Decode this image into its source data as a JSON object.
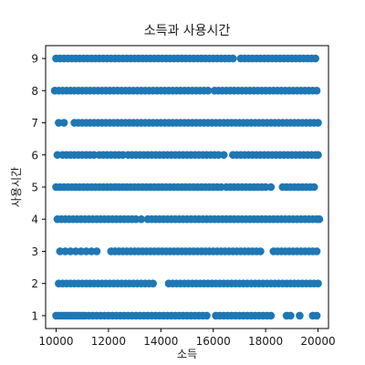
{
  "chart_data": {
    "type": "scatter",
    "title": "소득과 사용시간",
    "xlabel": "소득",
    "ylabel": "사용시간",
    "xlim": [
      9600,
      20400
    ],
    "ylim": [
      0.6,
      9.4
    ],
    "x_ticks": [
      10000,
      12000,
      14000,
      16000,
      18000,
      20000
    ],
    "y_ticks": [
      1,
      2,
      3,
      4,
      5,
      6,
      7,
      8,
      9
    ],
    "grid": false,
    "legend": "none",
    "marker_color": "#1f77b4",
    "series": [
      {
        "points": [
          {
            "y": 1,
            "x": [
              10000,
              10100,
              10200,
              10300,
              10400,
              10500,
              10600,
              10700,
              10800,
              10900,
              11000,
              11100,
              11250,
              11400,
              11550,
              11700,
              11850,
              12000,
              12150,
              12300,
              12450,
              12600,
              12750,
              12900,
              13050,
              13200,
              13350,
              13500,
              13650,
              13800,
              13950,
              14100,
              14250,
              14400,
              14550,
              14700,
              14850,
              15000,
              15150,
              15300,
              15450,
              15600,
              15750,
              16100,
              16250,
              16400,
              16550,
              16700,
              16850,
              17000,
              17150,
              17300,
              17450,
              17600,
              17750,
              17900,
              18050,
              18200,
              18800,
              18950,
              19300,
              19800,
              19950
            ]
          },
          {
            "y": 2,
            "x": [
              10100,
              10250,
              10400,
              10550,
              10700,
              10850,
              11000,
              11150,
              11300,
              11450,
              11600,
              11750,
              11900,
              12050,
              12200,
              12350,
              12500,
              12650,
              12800,
              12950,
              13100,
              13250,
              13400,
              13550,
              13700,
              14300,
              14450,
              14600,
              14750,
              14900,
              15050,
              15200,
              15350,
              15500,
              15650,
              15800,
              15950,
              16100,
              16250,
              16400,
              16550,
              16700,
              16850,
              17000,
              17150,
              17300,
              17450,
              17600,
              17750,
              17900,
              18050,
              18200,
              18350,
              18500,
              18650,
              18800,
              18950,
              19100,
              19250,
              19400,
              19550,
              19700,
              19850,
              20000
            ]
          },
          {
            "y": 3,
            "x": [
              10150,
              10350,
              10550,
              10750,
              10950,
              11150,
              11350,
              11550,
              12100,
              12250,
              12400,
              12550,
              12700,
              12850,
              13000,
              13150,
              13300,
              13450,
              13600,
              13750,
              13900,
              14050,
              14200,
              14350,
              14500,
              14650,
              14800,
              14950,
              15100,
              15250,
              15400,
              15550,
              15700,
              15850,
              16000,
              16150,
              16300,
              16450,
              16600,
              16750,
              16900,
              17050,
              17200,
              17350,
              17500,
              17650,
              17800,
              18300,
              18450,
              18600,
              18750,
              18900,
              19050,
              19200,
              19350,
              19500,
              19650,
              19800,
              19950
            ]
          },
          {
            "y": 4,
            "x": [
              10050,
              10200,
              10350,
              10500,
              10650,
              10800,
              10950,
              11100,
              11250,
              11400,
              11550,
              11700,
              11850,
              12000,
              12150,
              12300,
              12450,
              12600,
              12750,
              12900,
              13050,
              13250,
              13500,
              13650,
              13800,
              13950,
              14100,
              14250,
              14400,
              14550,
              14700,
              14850,
              15000,
              15150,
              15300,
              15450,
              15600,
              15750,
              15900,
              16050,
              16200,
              16350,
              16500,
              16650,
              16800,
              16950,
              17100,
              17250,
              17400,
              17550,
              17700,
              17850,
              18000,
              18150,
              18300,
              18450,
              18600,
              18750,
              18900,
              19050,
              19200,
              19350,
              19500,
              19650,
              19800,
              19950,
              20050
            ]
          },
          {
            "y": 5,
            "x": [
              10000,
              10150,
              10300,
              10450,
              10600,
              10750,
              10900,
              11050,
              11200,
              11350,
              11500,
              11650,
              11800,
              11950,
              12100,
              12250,
              12400,
              12550,
              12700,
              12850,
              13000,
              13150,
              13300,
              13450,
              13600,
              13750,
              13900,
              14050,
              14200,
              14350,
              14500,
              14650,
              14800,
              14950,
              15100,
              15250,
              15400,
              15550,
              15700,
              15850,
              16000,
              16150,
              16300,
              16500,
              16650,
              16800,
              16950,
              17100,
              17250,
              17400,
              17550,
              17700,
              17850,
              18000,
              18200,
              18650,
              18800,
              18950,
              19100,
              19250,
              19400,
              19550,
              19700,
              19850
            ]
          },
          {
            "y": 6,
            "x": [
              10050,
              10250,
              10400,
              10550,
              10700,
              10850,
              11000,
              11150,
              11300,
              11450,
              11650,
              11800,
              11950,
              12100,
              12250,
              12400,
              12550,
              12750,
              12900,
              13050,
              13200,
              13350,
              13500,
              13650,
              13800,
              13950,
              14100,
              14250,
              14400,
              14550,
              14700,
              14850,
              15000,
              15150,
              15300,
              15450,
              15600,
              15750,
              15900,
              16050,
              16200,
              16400,
              16750,
              16900,
              17050,
              17200,
              17350,
              17500,
              17650,
              17800,
              17950,
              18100,
              18250,
              18400,
              18550,
              18700,
              18850,
              19000,
              19150,
              19300,
              19450,
              19600,
              19750,
              19900,
              20000
            ]
          },
          {
            "y": 7,
            "x": [
              10100,
              10300,
              10700,
              10850,
              11000,
              11150,
              11300,
              11450,
              11600,
              11750,
              11900,
              12050,
              12200,
              12350,
              12500,
              12650,
              12800,
              12950,
              13100,
              13250,
              13400,
              13550,
              13700,
              13850,
              14000,
              14150,
              14300,
              14450,
              14600,
              14750,
              14900,
              15050,
              15200,
              15350,
              15500,
              15650,
              15800,
              15950,
              16100,
              16250,
              16400,
              16550,
              16700,
              16850,
              17000,
              17150,
              17300,
              17450,
              17600,
              17750,
              17900,
              18050,
              18200,
              18350,
              18500,
              18650,
              18800,
              18950,
              19100,
              19250,
              19400,
              19550,
              19700,
              19850,
              20000
            ]
          },
          {
            "y": 8,
            "x": [
              9950,
              10100,
              10250,
              10400,
              10550,
              10700,
              10850,
              11000,
              11150,
              11300,
              11450,
              11600,
              11750,
              11900,
              12050,
              12200,
              12350,
              12500,
              12650,
              12800,
              12950,
              13100,
              13250,
              13400,
              13550,
              13700,
              13850,
              14000,
              14150,
              14300,
              14450,
              14600,
              14750,
              14900,
              15050,
              15200,
              15350,
              15500,
              15650,
              15800,
              16050,
              16200,
              16350,
              16500,
              16650,
              16800,
              16950,
              17100,
              17250,
              17400,
              17550,
              17700,
              17850,
              18000,
              18150,
              18300,
              18450,
              18600,
              18750,
              18900,
              19050,
              19200,
              19350,
              19500,
              19650,
              19800,
              19950
            ]
          },
          {
            "y": 9,
            "x": [
              10000,
              10150,
              10300,
              10450,
              10600,
              10750,
              10900,
              11050,
              11200,
              11350,
              11500,
              11650,
              11800,
              11950,
              12100,
              12250,
              12400,
              12550,
              12700,
              12850,
              13000,
              13150,
              13300,
              13450,
              13600,
              13750,
              13900,
              14050,
              14200,
              14350,
              14500,
              14650,
              14800,
              14950,
              15100,
              15250,
              15400,
              15550,
              15700,
              15850,
              16000,
              16150,
              16300,
              16450,
              16600,
              16750,
              17050,
              17200,
              17350,
              17500,
              17650,
              17800,
              17950,
              18100,
              18250,
              18400,
              18550,
              18700,
              18850,
              19000,
              19150,
              19300,
              19450,
              19600,
              19750,
              19900
            ]
          }
        ]
      }
    ]
  }
}
